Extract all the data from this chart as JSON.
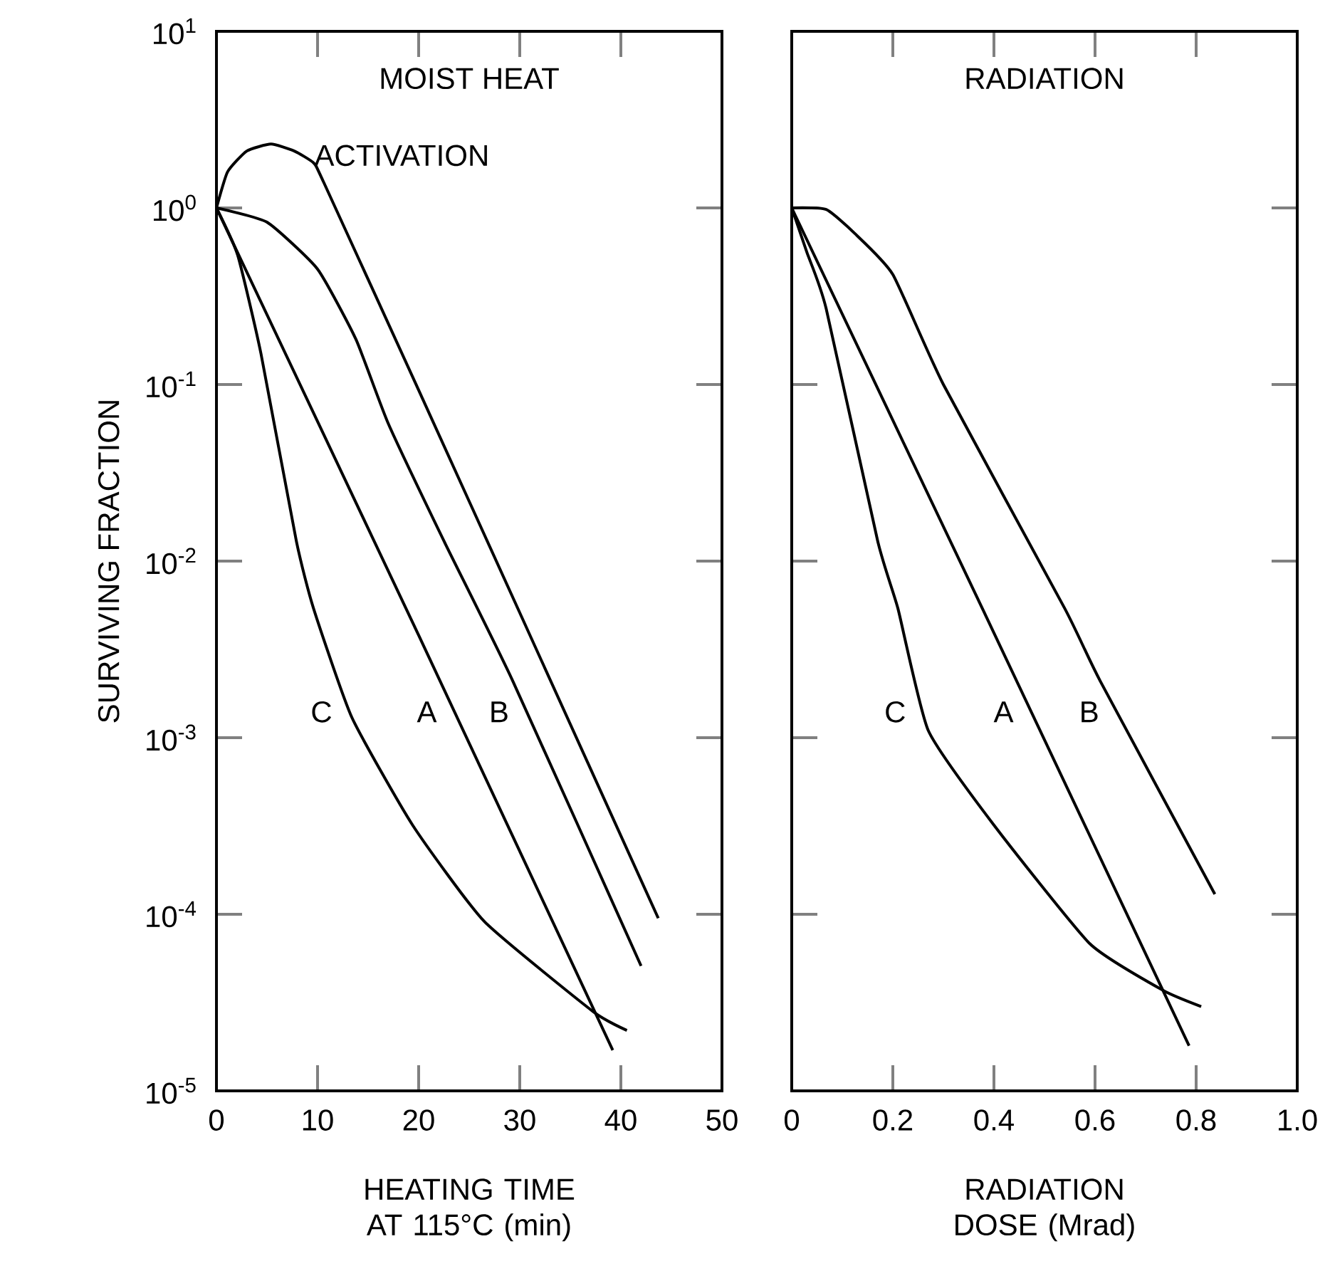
{
  "chart_data": [
    {
      "type": "line",
      "title": "MOIST HEAT",
      "xlabel": "HEATING TIME AT 115°C (min)",
      "ylabel": "SURVIVING FRACTION",
      "log": "y",
      "marker": "none",
      "line_style": "solid",
      "xlim": [
        0,
        50
      ],
      "xticks": [
        0,
        10,
        20,
        30,
        40,
        50
      ],
      "ylim": [
        1e-05,
        10
      ],
      "yticks": [
        {
          "value": 1e-05,
          "label": "10$^{-5}$"
        },
        {
          "value": 0.0001,
          "label": "10$^{-4}$"
        },
        {
          "value": 0.001,
          "label": "10$^{-3}$"
        },
        {
          "value": 0.01,
          "label": "10$^{-2}$"
        },
        {
          "value": 0.1,
          "label": "10$^{-1}$"
        },
        {
          "value": 1,
          "label": "10$^{0}$"
        },
        {
          "value": 10,
          "label": "10$^{1}$"
        }
      ],
      "series": [
        {
          "name": "ACTIVATION",
          "color": "#000000",
          "x": [
            0,
            1.1,
            3,
            5.4,
            7.7,
            9.6,
            10.6,
            20,
            30,
            43.7
          ],
          "values": [
            1,
            1.6,
            2.1,
            2.3,
            2.1,
            1.8,
            1.4,
            0.093,
            0.0051,
            9.5e-05
          ]
        },
        {
          "name": "B",
          "color": "#000000",
          "x": [
            0,
            5,
            10,
            13.8,
            17,
            22.5,
            29.3,
            42
          ],
          "values": [
            1,
            0.83,
            0.45,
            0.18,
            0.06,
            0.013,
            0.0021,
            5.1e-05
          ]
        },
        {
          "name": "A",
          "color": "#000000",
          "x": [
            0,
            20,
            39.2
          ],
          "values": [
            1,
            0.0038,
            1.7e-05
          ]
        },
        {
          "name": "C",
          "color": "#000000",
          "x": [
            0,
            2.1,
            4.4,
            7.9,
            9.6,
            13.4,
            19.4,
            26.5,
            37.3,
            40.6
          ],
          "values": [
            1,
            0.54,
            0.15,
            0.013,
            0.0054,
            0.0013,
            0.00032,
            9.1e-05,
            2.8e-05,
            2.2e-05
          ]
        }
      ]
    },
    {
      "type": "line",
      "title": "RADIATION",
      "xlabel": "RADIATION DOSE (Mrad)",
      "log": "y",
      "marker": "none",
      "line_style": "solid",
      "tick_labels": "x",
      "xlim": [
        0,
        1
      ],
      "xticks": [
        0,
        0.2,
        0.4,
        0.6,
        0.8,
        {
          "value": 1,
          "label": "1.0"
        }
      ],
      "ylim": [
        1e-05,
        10
      ],
      "yticks": [
        {
          "value": 1e-05,
          "label": null
        },
        {
          "value": 0.0001,
          "label": null
        },
        {
          "value": 0.001,
          "label": null
        },
        {
          "value": 0.01,
          "label": null
        },
        {
          "value": 0.1,
          "label": null
        },
        {
          "value": 1,
          "label": null
        },
        {
          "value": 10,
          "label": null
        }
      ],
      "series": [
        {
          "name": "B",
          "color": "#000000",
          "x": [
            0,
            0.068,
            0.124,
            0.2,
            0.3,
            0.54,
            0.61,
            0.837
          ],
          "values": [
            1,
            0.98,
            0.72,
            0.42,
            0.1,
            0.0054,
            0.0021,
            0.00013
          ]
        },
        {
          "name": "A",
          "color": "#000000",
          "x": [
            0,
            0.377,
            0.786
          ],
          "values": [
            1,
            0.0054,
            1.8e-05
          ]
        },
        {
          "name": "C",
          "color": "#000000",
          "x": [
            0,
            0.03,
            0.068,
            0.17,
            0.21,
            0.27,
            0.4,
            0.59,
            0.735,
            0.81
          ],
          "values": [
            1,
            0.56,
            0.27,
            0.013,
            0.0054,
            0.0011,
            0.00032,
            6.8e-05,
            3.7e-05,
            3e-05
          ]
        }
      ]
    }
  ]
}
